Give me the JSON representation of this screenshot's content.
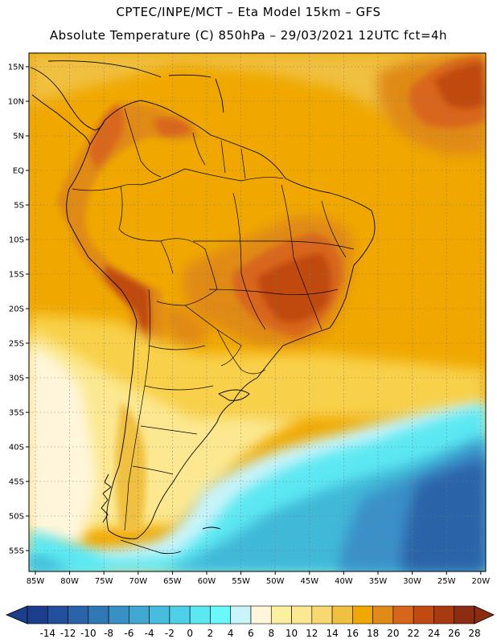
{
  "header": {
    "line1": "CPTEC/INPE/MCT –  Eta Model 15km – GFS",
    "line2": "Absolute Temperature (C) 850hPa – 29/03/2021 12UTC fct=4h"
  },
  "map": {
    "lat_labels": [
      "15N",
      "10N",
      "5N",
      "EQ",
      "5S",
      "10S",
      "15S",
      "20S",
      "25S",
      "30S",
      "35S",
      "40S",
      "45S",
      "50S",
      "55S"
    ],
    "lon_labels": [
      "85W",
      "80W",
      "75W",
      "70W",
      "65W",
      "60W",
      "55W",
      "50W",
      "45W",
      "40W",
      "35W",
      "30W",
      "25W",
      "20W"
    ],
    "colors": {
      "base": "#f0a800",
      "warm": "#e08a18",
      "hot": "#d8661a",
      "hottest": "#c04a10",
      "pale_yellow": "#f8d048",
      "light_yellow": "#fce890",
      "cream": "#fff6dc",
      "cyan": "#5ce8f2",
      "light_cyan": "#c8f4fa",
      "teal": "#40b8d8",
      "steel": "#3a90c8",
      "blue": "#2a64a8",
      "coast": "#000000",
      "grid": "#888888"
    }
  },
  "colorbar": {
    "labels": [
      "-14",
      "-12",
      "-10",
      "-8",
      "-6",
      "-4",
      "-2",
      "0",
      "2",
      "4",
      "6",
      "8",
      "10",
      "12",
      "14",
      "16",
      "18",
      "20",
      "22",
      "24",
      "26",
      "28"
    ],
    "colors": [
      "#1c3c8c",
      "#22509c",
      "#2a64a8",
      "#3078b4",
      "#3890c4",
      "#40a8d0",
      "#48bcdc",
      "#50d0e8",
      "#5ce8f2",
      "#6af8fa",
      "#c8f4fa",
      "#fff6dc",
      "#fcf0a0",
      "#fce890",
      "#f8d870",
      "#f0c040",
      "#f0a800",
      "#e08a18",
      "#d8661a",
      "#c04a10",
      "#a83a10",
      "#8c2c10"
    ]
  }
}
